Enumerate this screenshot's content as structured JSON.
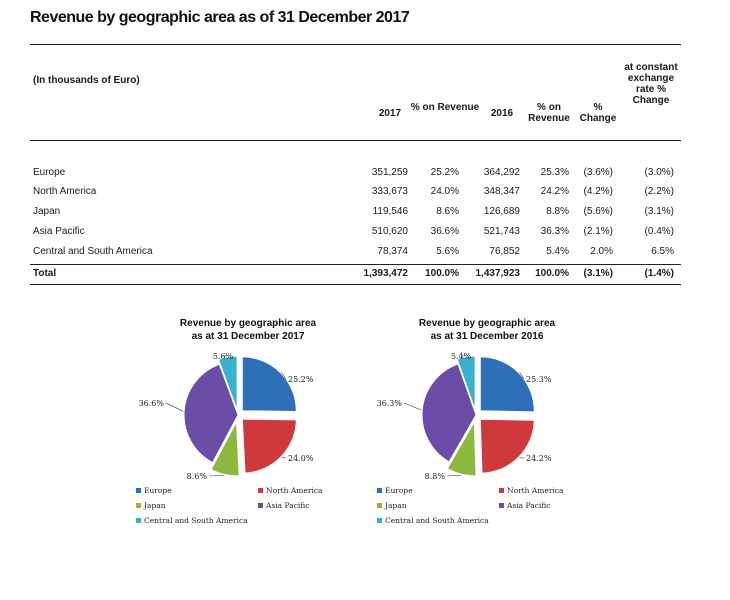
{
  "title": "Revenue by geographic area as of 31 December 2017",
  "table": {
    "unit_note": "(In thousands of Euro)",
    "headers": {
      "y2017": "2017",
      "pct_rev_2017": "% on Revenue",
      "y2016": "2016",
      "pct_rev_2016": "% on Revenue",
      "pct_change": "% Change",
      "const_fx": "at constant exchange rate % Change"
    },
    "rows": [
      {
        "area": "Europe",
        "v2017": "351,259",
        "p2017": "25.2%",
        "v2016": "364,292",
        "p2016": "25.3%",
        "chg": "(3.6%)",
        "cfx": "(3.0%)"
      },
      {
        "area": "North America",
        "v2017": "333,673",
        "p2017": "24.0%",
        "v2016": "348,347",
        "p2016": "24.2%",
        "chg": "(4.2%)",
        "cfx": "(2.2%)"
      },
      {
        "area": "Japan",
        "v2017": "119,546",
        "p2017": "8.6%",
        "v2016": "126,689",
        "p2016": "8.8%",
        "chg": "(5.6%)",
        "cfx": "(3.1%)"
      },
      {
        "area": "Asia Pacific",
        "v2017": "510,620",
        "p2017": "36.6%",
        "v2016": "521,743",
        "p2016": "36.3%",
        "chg": "(2.1%)",
        "cfx": "(0.4%)"
      },
      {
        "area": "Central and South America",
        "v2017": "78,374",
        "p2017": "5.6%",
        "v2016": "76,852",
        "p2016": "5.4%",
        "chg": "2.0%",
        "cfx": "6.5%"
      }
    ],
    "total": {
      "area": "Total",
      "v2017": "1,393,472",
      "p2017": "100.0%",
      "v2016": "1,437,923",
      "p2016": "100.0%",
      "chg": "(3.1%)",
      "cfx": "(1.4%)"
    }
  },
  "colors": {
    "Europe": "#2e6fba",
    "North America": "#d0393c",
    "Japan": "#8cb83d",
    "Asia Pacific": "#6b4ca6",
    "Central and South America": "#36b2cf"
  },
  "chart_data": [
    {
      "type": "pie",
      "title_line1": "Revenue by geographic area",
      "title_line2": "as at 31 December 2017",
      "labels": [
        "Europe",
        "North America",
        "Japan",
        "Asia Pacific",
        "Central and South America"
      ],
      "values": [
        25.2,
        24.0,
        8.6,
        36.6,
        5.6
      ],
      "value_labels": [
        "25.2%",
        "24.0%",
        "8.6%",
        "36.6%",
        "5.6%"
      ],
      "legend_position": "bottom"
    },
    {
      "type": "pie",
      "title_line1": "Revenue by geographic area",
      "title_line2": "as at 31 December 2016",
      "labels": [
        "Europe",
        "North America",
        "Japan",
        "Asia Pacific",
        "Central and South America"
      ],
      "values": [
        25.3,
        24.2,
        8.8,
        36.3,
        5.4
      ],
      "value_labels": [
        "25.3%",
        "24.2%",
        "8.8%",
        "36.3%",
        "5.4%"
      ],
      "legend_position": "bottom"
    }
  ]
}
